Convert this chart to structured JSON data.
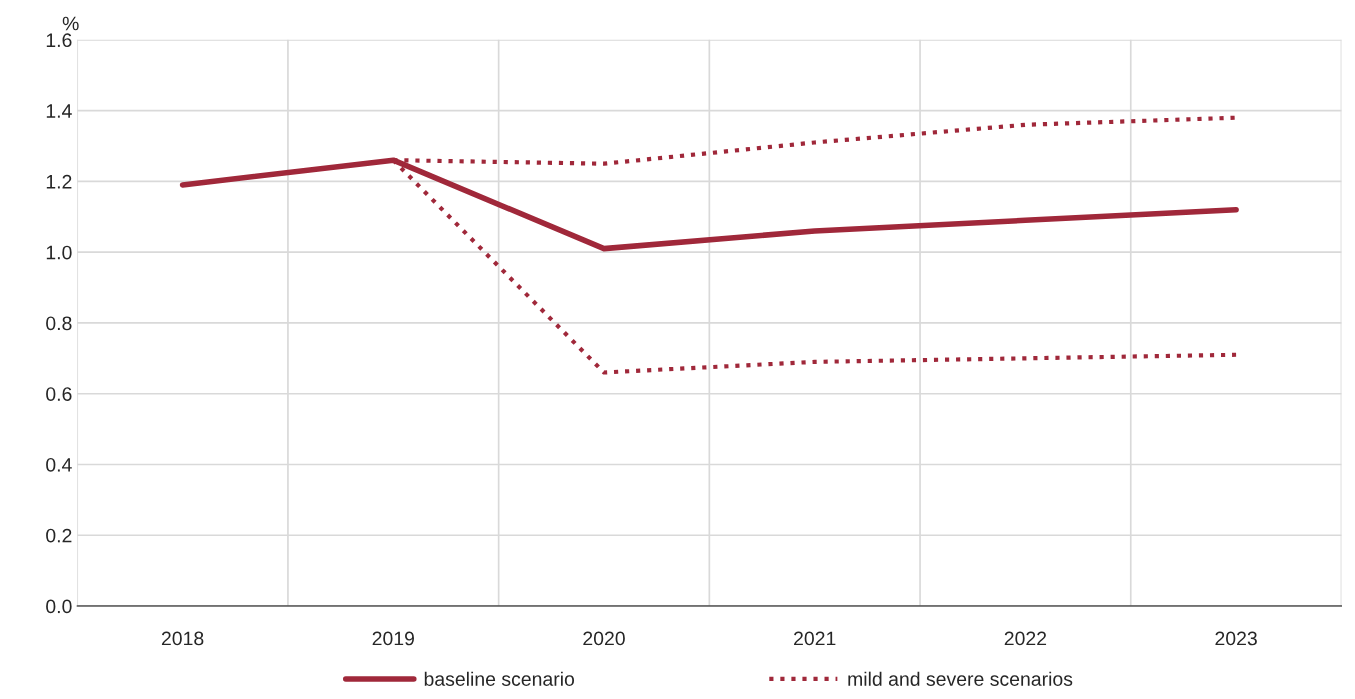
{
  "chart_data": {
    "type": "line",
    "ylabel": "%",
    "categories": [
      "2018",
      "2019",
      "2020",
      "2021",
      "2022",
      "2023"
    ],
    "series": [
      {
        "name": "baseline scenario",
        "color": "#a0283a",
        "line_style": "solid",
        "values": [
          1.19,
          1.26,
          1.01,
          1.06,
          1.09,
          1.12
        ]
      },
      {
        "name": "mild and severe scenarios",
        "color": "#a0283a",
        "line_style": "dotted",
        "values": [
          null,
          1.26,
          1.25,
          1.31,
          1.36,
          1.38
        ]
      },
      {
        "color": "#a0283a",
        "line_style": "dotted",
        "values": [
          null,
          1.26,
          0.66,
          0.69,
          0.7,
          0.71
        ]
      }
    ],
    "ylim": [
      0,
      1.6
    ],
    "yticks": [
      {
        "value": 0,
        "label": "0.0"
      },
      {
        "value": 0.2,
        "label": "0.2"
      },
      {
        "value": 0.4,
        "label": "0.4"
      },
      {
        "value": 0.6,
        "label": "0.6"
      },
      {
        "value": 0.8,
        "label": "0.8"
      },
      {
        "value": 1.0,
        "label": "1.0"
      },
      {
        "value": 1.2,
        "label": "1.2"
      },
      {
        "value": 1.4,
        "label": "1.4"
      },
      {
        "value": 1.6,
        "label": "1.6"
      }
    ],
    "grid": true,
    "legend": "bottom",
    "marker": "none"
  }
}
